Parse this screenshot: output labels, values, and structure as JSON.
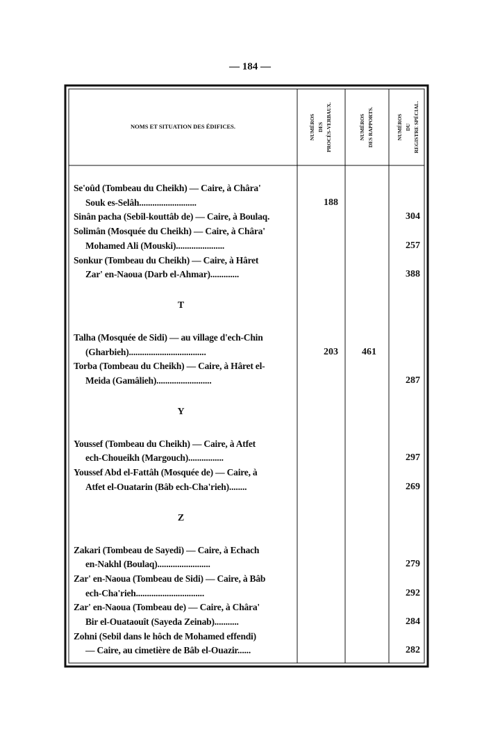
{
  "page_number": "— 184 —",
  "table": {
    "headers": {
      "name": "NOMS ET SITUATION DES ÉDIFICES.",
      "pv": [
        "NUMÉROS",
        "DES",
        "PROCÈS-VERBAUX."
      ],
      "rapports": [
        "NUMÉROS",
        "DES RAPPORTS."
      ],
      "registre": [
        "NUMÉROS",
        "DU",
        "REGISTRE SPÉCIAL."
      ]
    },
    "sections": [
      {
        "entries": [
          {
            "lines": [
              "Se'oûd (Tombeau du Cheikh) — Caire, à Châra'",
              "Souk es-Selâh.........................."
            ],
            "pv": "188"
          },
          {
            "lines": [
              "Sinân pacha (Sebîl-kouttâb de) — Caire, à Boulaq."
            ],
            "registre": "304"
          },
          {
            "lines": [
              "Solimân (Mosquée du Cheikh) — Caire, à Châra'",
              "Mohamed Ali (Mouski)......................"
            ],
            "registre": "257"
          },
          {
            "lines": [
              "Sonkur (Tombeau du Cheikh) — Caire, à Hâret",
              "Zar' en-Naoua (Darb el-Ahmar)............."
            ],
            "registre": "388"
          }
        ]
      },
      {
        "letter": "T",
        "entries": [
          {
            "lines": [
              "Talha (Mosquée de Sidi) — au village d'ech-Chin",
              "(Gharbieh)..................................."
            ],
            "pv": "203",
            "rapports": "461"
          },
          {
            "lines": [
              "Torba (Tombeau du Cheikh) — Caire, à Hâret el-",
              "Meida (Gamâlieh)........................."
            ],
            "registre": "287"
          }
        ]
      },
      {
        "letter": "Y",
        "entries": [
          {
            "lines": [
              "Youssef (Tombeau du Cheikh) — Caire, à Atfet",
              "ech-Choueikh (Margouch)................"
            ],
            "registre": "297"
          },
          {
            "lines": [
              "Youssef Abd el-Fattâh (Mosquée de) — Caire, à",
              "Atfet el-Ouatarin (Bâb ech-Cha'rieh)........"
            ],
            "registre": "269"
          }
        ]
      },
      {
        "letter": "Z",
        "entries": [
          {
            "lines": [
              "Zakari (Tombeau de Sayedi) — Caire, à Echach",
              "en-Nakhl (Boulaq)........................"
            ],
            "registre": "279"
          },
          {
            "lines": [
              "Zar' en-Naoua (Tombeau de Sidi) — Caire, à Bâb",
              "ech-Cha'rieh..............................."
            ],
            "registre": "292"
          },
          {
            "lines": [
              "Zar' en-Naoua (Tombeau de) — Caire, à Châra'",
              "Bir el-Ouataouît (Sayeda Zeinab)..........."
            ],
            "registre": "284"
          },
          {
            "lines": [
              "Zohni (Sebil dans le hôch de Mohamed effendi)",
              "— Caire, au cimetière de Bâb el-Ouazir......"
            ],
            "registre": "282"
          }
        ]
      }
    ]
  }
}
